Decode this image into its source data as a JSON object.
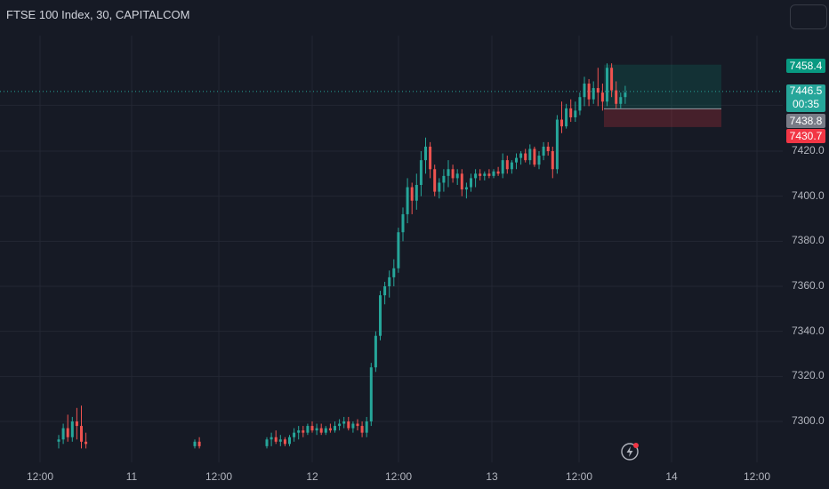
{
  "header": {
    "title": "FTSE 100 Index, 30, CAPITALCOM"
  },
  "price_labels": {
    "target": "7458.4",
    "current": "7446.5",
    "countdown": "00:35",
    "entry": "7438.8",
    "stop": "7430.7"
  },
  "colors": {
    "background": "#161a25",
    "up": "#26a69a",
    "down": "#ef5350",
    "target_label": "#089981",
    "stop_label": "#f23645",
    "entry_label": "#787b86"
  },
  "chart_data": {
    "type": "candlestick",
    "y_ticks": [
      "7420.0",
      "7400.0",
      "7380.0",
      "7360.0",
      "7340.0",
      "7320.0",
      "7300.0"
    ],
    "x_ticks": [
      "12:00",
      "11",
      "12:00",
      "12",
      "12:00",
      "13",
      "12:00",
      "14",
      "12:00"
    ],
    "ylim": [
      7288,
      7478
    ],
    "grid": true,
    "position_tool": {
      "entry": 7438.8,
      "target": 7458.4,
      "stop": 7430.7
    },
    "current_price": 7446.5,
    "candles": [
      [
        7291,
        7294,
        7288,
        7292
      ],
      [
        7292,
        7299,
        7290,
        7297
      ],
      [
        7297,
        7303,
        7291,
        7293
      ],
      [
        7293,
        7302,
        7291,
        7300
      ],
      [
        7300,
        7306,
        7292,
        7298
      ],
      [
        7298,
        7307,
        7288,
        7291
      ],
      [
        7291,
        7295,
        7288,
        7290
      ],
      [
        7289,
        7292,
        7288,
        7291
      ],
      [
        7291,
        7293,
        7288,
        7289
      ],
      [
        7289,
        7293,
        7288,
        7292
      ],
      [
        7292,
        7295,
        7289,
        7293
      ],
      [
        7293,
        7296,
        7290,
        7291
      ],
      [
        7291,
        7294,
        7289,
        7292
      ],
      [
        7292,
        7293,
        7289,
        7290
      ],
      [
        7290,
        7294,
        7289,
        7293
      ],
      [
        7293,
        7297,
        7291,
        7295
      ],
      [
        7295,
        7298,
        7292,
        7296
      ],
      [
        7296,
        7298,
        7293,
        7295
      ],
      [
        7295,
        7299,
        7294,
        7298
      ],
      [
        7298,
        7300,
        7295,
        7296
      ],
      [
        7296,
        7299,
        7294,
        7297
      ],
      [
        7297,
        7299,
        7294,
        7295
      ],
      [
        7295,
        7298,
        7294,
        7297
      ],
      [
        7297,
        7299,
        7295,
        7296
      ],
      [
        7296,
        7300,
        7295,
        7298
      ],
      [
        7298,
        7301,
        7296,
        7299
      ],
      [
        7299,
        7302,
        7297,
        7300
      ],
      [
        7300,
        7302,
        7296,
        7297
      ],
      [
        7297,
        7300,
        7295,
        7299
      ],
      [
        7299,
        7301,
        7296,
        7298
      ],
      [
        7298,
        7300,
        7293,
        7295
      ],
      [
        7295,
        7302,
        7293,
        7300
      ],
      [
        7300,
        7326,
        7298,
        7324
      ],
      [
        7324,
        7340,
        7322,
        7338
      ],
      [
        7338,
        7358,
        7336,
        7356
      ],
      [
        7356,
        7362,
        7352,
        7360
      ],
      [
        7360,
        7367,
        7355,
        7364
      ],
      [
        7364,
        7372,
        7360,
        7368
      ],
      [
        7368,
        7386,
        7366,
        7384
      ],
      [
        7384,
        7395,
        7380,
        7392
      ],
      [
        7392,
        7408,
        7388,
        7404
      ],
      [
        7404,
        7406,
        7392,
        7398
      ],
      [
        7398,
        7410,
        7394,
        7405
      ],
      [
        7405,
        7420,
        7400,
        7416
      ],
      [
        7416,
        7426,
        7410,
        7422
      ],
      [
        7422,
        7424,
        7408,
        7412
      ],
      [
        7412,
        7414,
        7400,
        7402
      ],
      [
        7402,
        7408,
        7399,
        7406
      ],
      [
        7406,
        7412,
        7402,
        7409
      ],
      [
        7409,
        7416,
        7404,
        7412
      ],
      [
        7412,
        7414,
        7406,
        7408
      ],
      [
        7408,
        7412,
        7405,
        7410
      ],
      [
        7410,
        7412,
        7400,
        7403
      ],
      [
        7403,
        7406,
        7399,
        7404
      ],
      [
        7404,
        7410,
        7402,
        7408
      ],
      [
        7408,
        7412,
        7404,
        7410
      ],
      [
        7410,
        7412,
        7407,
        7409
      ],
      [
        7409,
        7411,
        7407,
        7410
      ],
      [
        7410,
        7412,
        7408,
        7409
      ],
      [
        7409,
        7412,
        7408,
        7411
      ],
      [
        7411,
        7413,
        7409,
        7410
      ],
      [
        7410,
        7419,
        7408,
        7416
      ],
      [
        7416,
        7418,
        7410,
        7412
      ],
      [
        7412,
        7416,
        7410,
        7415
      ],
      [
        7415,
        7419,
        7412,
        7417
      ],
      [
        7417,
        7420,
        7414,
        7419
      ],
      [
        7419,
        7421,
        7415,
        7416
      ],
      [
        7416,
        7423,
        7414,
        7421
      ],
      [
        7421,
        7422,
        7413,
        7414
      ],
      [
        7414,
        7420,
        7412,
        7418
      ],
      [
        7418,
        7424,
        7416,
        7422
      ],
      [
        7422,
        7424,
        7418,
        7420
      ],
      [
        7420,
        7422,
        7408,
        7412
      ],
      [
        7412,
        7436,
        7410,
        7434
      ],
      [
        7434,
        7442,
        7428,
        7431
      ],
      [
        7431,
        7441,
        7430,
        7439
      ],
      [
        7439,
        7443,
        7433,
        7435
      ],
      [
        7435,
        7442,
        7433,
        7438
      ],
      [
        7438,
        7446,
        7436,
        7444
      ],
      [
        7444,
        7453,
        7440,
        7450
      ],
      [
        7450,
        7452,
        7440,
        7443
      ],
      [
        7443,
        7451,
        7441,
        7448
      ],
      [
        7448,
        7457,
        7440,
        7446
      ],
      [
        7446,
        7450,
        7438,
        7442
      ],
      [
        7442,
        7459,
        7440,
        7457
      ],
      [
        7457,
        7459,
        7444,
        7447
      ],
      [
        7447,
        7451,
        7439,
        7441
      ],
      [
        7441,
        7446,
        7439,
        7444
      ],
      [
        7444,
        7449,
        7441,
        7446
      ]
    ]
  }
}
